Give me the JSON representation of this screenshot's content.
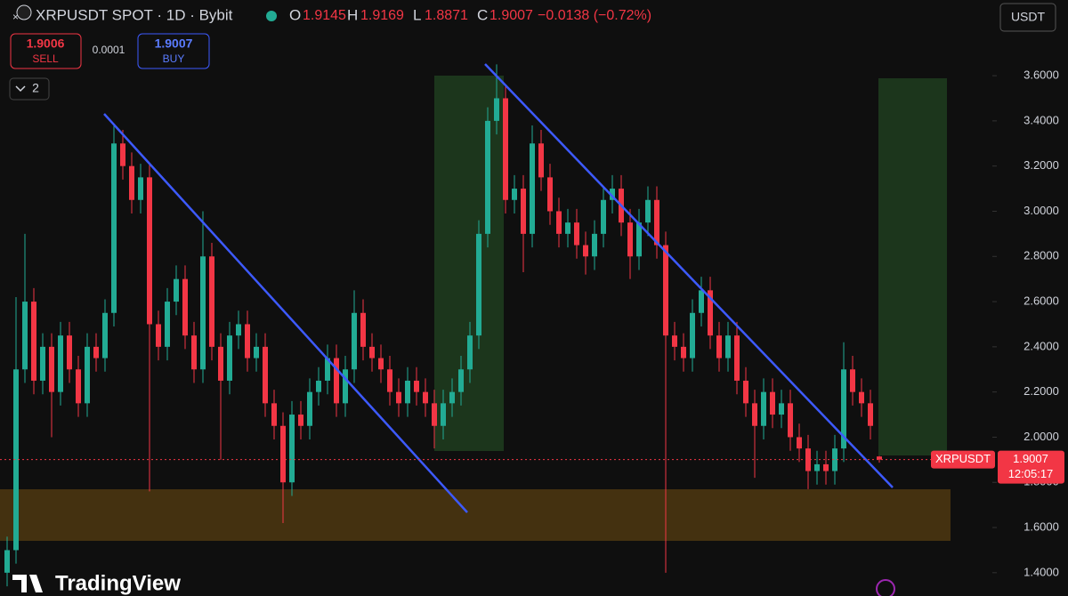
{
  "header": {
    "symbol_title": "XRPUSDT SPOT · 1D · Bybit",
    "o_label": "O",
    "h_label": "H",
    "l_label": "L",
    "c_label": "C",
    "change": "−0.0138 (−0.72%)"
  },
  "trade": {
    "sell_price": 1.9006,
    "sell_label": "SELL",
    "spread": 0.0001,
    "buy_price": 1.9007,
    "buy_label": "BUY"
  },
  "indicators_toggle": "2",
  "currency": "USDT",
  "branding": "TradingView",
  "chart_data": {
    "type": "candlestick",
    "symbol_label": "XRPUSDT",
    "countdown": "12:05:17",
    "colors": {
      "up": "#22ab94",
      "down": "#f23645"
    },
    "ylim": [
      1.297,
      3.935
    ],
    "yticks": [
      {
        "value": 1.4,
        "label": "1.4000"
      },
      {
        "value": 1.6,
        "label": "1.6000"
      },
      {
        "value": 1.8,
        "label": "1.8000"
      },
      {
        "value": 2.0,
        "label": "2.0000"
      },
      {
        "value": 2.2,
        "label": "2.2000"
      },
      {
        "value": 2.4,
        "label": "2.4000"
      },
      {
        "value": 2.6,
        "label": "2.6000"
      },
      {
        "value": 2.8,
        "label": "2.8000"
      },
      {
        "value": 3.0,
        "label": "3.0000"
      },
      {
        "value": 3.2,
        "label": "3.2000"
      },
      {
        "value": 3.4,
        "label": "3.4000"
      },
      {
        "value": 3.6,
        "label": "3.6000"
      }
    ],
    "open": [
      1.4,
      1.5,
      2.3,
      2.6,
      2.25,
      2.4,
      2.2,
      2.45,
      2.3,
      2.15,
      2.4,
      2.35,
      2.55,
      3.3,
      3.2,
      3.05,
      3.15,
      2.5,
      2.4,
      2.6,
      2.7,
      2.45,
      2.3,
      2.8,
      2.4,
      2.25,
      2.45,
      2.5,
      2.35,
      2.4,
      2.15,
      2.05,
      1.8,
      2.1,
      2.05,
      2.2,
      2.25,
      2.35,
      2.15,
      2.3,
      2.55,
      2.4,
      2.35,
      2.3,
      2.2,
      2.15,
      2.25,
      2.2,
      2.15,
      2.05,
      2.15,
      2.2,
      2.3,
      2.45,
      2.9,
      3.4,
      3.5,
      3.05,
      3.1,
      2.9,
      3.3,
      3.15,
      3.0,
      2.9,
      2.95,
      2.85,
      2.8,
      2.9,
      3.05,
      3.1,
      2.95,
      2.8,
      2.95,
      3.05,
      2.85,
      2.45,
      2.4,
      2.35,
      2.55,
      2.65,
      2.45,
      2.35,
      2.45,
      2.25,
      2.15,
      2.05,
      2.2,
      2.1,
      2.15,
      2.0,
      1.95,
      1.85,
      1.88,
      1.85,
      1.95,
      2.3,
      2.2,
      2.15,
      1.9145
    ],
    "high": [
      1.56,
      2.62,
      2.9,
      2.66,
      2.46,
      2.46,
      2.51,
      2.51,
      2.36,
      2.46,
      2.46,
      2.61,
      3.38,
      3.36,
      3.26,
      3.21,
      3.21,
      2.56,
      2.66,
      2.76,
      2.76,
      2.51,
      3.0,
      2.86,
      2.46,
      2.51,
      2.56,
      2.56,
      2.46,
      2.46,
      2.21,
      2.11,
      2.16,
      2.16,
      2.26,
      2.31,
      2.41,
      2.41,
      2.36,
      2.65,
      2.61,
      2.46,
      2.41,
      2.36,
      2.26,
      2.31,
      2.31,
      2.26,
      2.21,
      2.21,
      2.26,
      2.36,
      2.51,
      2.96,
      3.46,
      3.65,
      3.56,
      3.16,
      3.16,
      3.38,
      3.36,
      3.21,
      3.06,
      3.01,
      3.01,
      2.91,
      2.96,
      3.11,
      3.16,
      3.16,
      3.01,
      3.01,
      3.11,
      3.11,
      2.91,
      2.51,
      2.46,
      2.61,
      2.71,
      2.71,
      2.51,
      2.51,
      2.51,
      2.31,
      2.21,
      2.26,
      2.26,
      2.21,
      2.21,
      2.06,
      2.01,
      1.94,
      1.94,
      2.01,
      2.42,
      2.36,
      2.26,
      2.21,
      1.9169
    ],
    "low": [
      1.34,
      1.44,
      2.24,
      2.19,
      2.19,
      2.0,
      2.14,
      2.24,
      2.09,
      2.09,
      2.29,
      2.29,
      2.49,
      3.14,
      2.99,
      2.99,
      1.76,
      2.34,
      2.34,
      2.54,
      2.39,
      2.24,
      2.24,
      2.34,
      1.9,
      2.19,
      2.39,
      2.29,
      2.29,
      2.09,
      1.99,
      1.62,
      1.74,
      1.99,
      1.99,
      2.14,
      2.19,
      2.09,
      2.09,
      2.24,
      2.34,
      2.29,
      2.24,
      2.14,
      2.09,
      2.09,
      2.14,
      2.09,
      1.95,
      1.99,
      2.09,
      2.14,
      2.24,
      2.39,
      2.84,
      3.34,
      2.99,
      2.99,
      2.73,
      2.84,
      3.09,
      2.94,
      2.84,
      2.84,
      2.79,
      2.72,
      2.74,
      2.84,
      2.99,
      2.89,
      2.7,
      2.74,
      2.89,
      2.79,
      1.4,
      2.34,
      2.29,
      2.29,
      2.49,
      2.39,
      2.29,
      2.29,
      2.19,
      2.09,
      1.82,
      1.99,
      2.04,
      2.04,
      1.94,
      1.89,
      1.77,
      1.79,
      1.79,
      1.79,
      1.89,
      2.14,
      2.09,
      1.99,
      1.8871
    ],
    "close": [
      1.5,
      2.3,
      2.6,
      2.25,
      2.4,
      2.2,
      2.45,
      2.3,
      2.15,
      2.4,
      2.35,
      2.55,
      3.3,
      3.2,
      3.05,
      3.15,
      2.5,
      2.4,
      2.6,
      2.7,
      2.45,
      2.3,
      2.8,
      2.4,
      2.25,
      2.45,
      2.5,
      2.35,
      2.4,
      2.15,
      2.05,
      1.8,
      2.1,
      2.05,
      2.2,
      2.25,
      2.35,
      2.15,
      2.3,
      2.55,
      2.4,
      2.35,
      2.3,
      2.2,
      2.15,
      2.25,
      2.2,
      2.15,
      2.05,
      2.15,
      2.2,
      2.3,
      2.45,
      2.9,
      3.4,
      3.5,
      3.05,
      3.1,
      2.9,
      3.3,
      3.15,
      3.0,
      2.9,
      2.95,
      2.85,
      2.8,
      2.9,
      3.05,
      3.1,
      2.95,
      2.8,
      2.95,
      3.05,
      2.85,
      2.45,
      2.4,
      2.35,
      2.55,
      2.65,
      2.45,
      2.35,
      2.45,
      2.25,
      2.15,
      2.05,
      2.2,
      2.1,
      2.15,
      2.0,
      1.95,
      1.85,
      1.88,
      1.85,
      1.95,
      2.3,
      2.2,
      2.15,
      2.05,
      1.9007
    ]
  }
}
